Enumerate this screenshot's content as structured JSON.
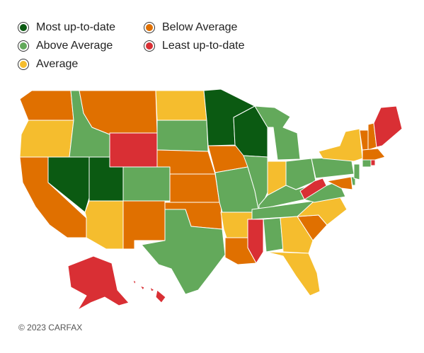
{
  "legend": {
    "items": [
      {
        "label": "Most up-to-date",
        "color": "#0b5a12"
      },
      {
        "label": "Above Average",
        "color": "#63a95b"
      },
      {
        "label": "Average",
        "color": "#f5bd2e"
      },
      {
        "label": "Below Average",
        "color": "#e07000"
      },
      {
        "label": "Least up-to-date",
        "color": "#d92f34"
      }
    ]
  },
  "states": {
    "most": [
      "NV",
      "UT",
      "MN",
      "WI"
    ],
    "above": [
      "ID",
      "WY_no",
      "CO",
      "SD",
      "IL",
      "MI",
      "MO",
      "KY",
      "TN",
      "AL",
      "TX",
      "PA",
      "VA",
      "OH",
      "VT",
      "NJ",
      "DE"
    ],
    "average": [
      "OR",
      "ND",
      "AZ",
      "AR",
      "IN",
      "GA",
      "FL",
      "NY",
      "NC"
    ],
    "below": [
      "WA",
      "CA",
      "MT",
      "NE",
      "KS",
      "OK",
      "NM",
      "IA",
      "LA",
      "SC",
      "NH",
      "MA",
      "CT",
      "MD"
    ],
    "least": [
      "WY",
      "WV",
      "MS",
      "ME",
      "AK",
      "HI",
      "RI"
    ]
  },
  "footer": {
    "copyright": "© 2023 CARFAX"
  }
}
